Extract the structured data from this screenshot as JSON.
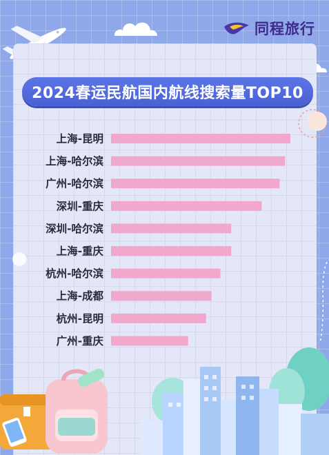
{
  "brand": {
    "name": "同程旅行",
    "logo_icon": "tongcheng-bird-logo-icon",
    "logo_color": "#4b36a8"
  },
  "colors": {
    "bar": "#f0a9cc",
    "title_bg": "#5068dc",
    "background": "#8fa8ea"
  },
  "chart_data": {
    "type": "bar",
    "orientation": "horizontal",
    "title": "2024春运民航国内航线搜索量TOP10",
    "categories": [
      "上海-昆明",
      "上海-哈尔滨",
      "广州-哈尔滨",
      "深圳-重庆",
      "深圳-哈尔滨",
      "上海-重庆",
      "杭州-哈尔滨",
      "上海-成都",
      "杭州-昆明",
      "广州-重庆"
    ],
    "values": [
      100,
      97,
      94,
      84,
      67,
      67,
      61,
      56,
      53,
      43
    ],
    "xlim": [
      0,
      100
    ],
    "grid": false,
    "legend": "none"
  }
}
